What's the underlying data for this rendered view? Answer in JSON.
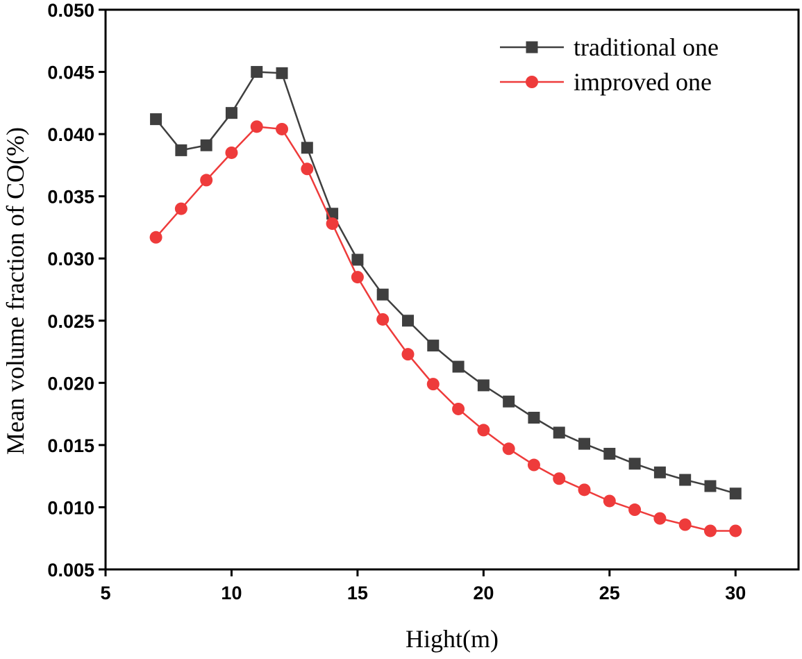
{
  "chart_data": {
    "type": "line",
    "title": "",
    "xlabel": "Hight(m)",
    "ylabel": "Mean volume fraction of CO(%)",
    "xlim": [
      5,
      32.5
    ],
    "ylim": [
      0.005,
      0.05
    ],
    "xticks": [
      5,
      10,
      15,
      20,
      25,
      30
    ],
    "xtick_labels": [
      "5",
      "10",
      "15",
      "20",
      "25",
      "30"
    ],
    "yticks": [
      0.005,
      0.01,
      0.015,
      0.02,
      0.025,
      0.03,
      0.035,
      0.04,
      0.045,
      0.05
    ],
    "ytick_labels": [
      "0.005",
      "0.010",
      "0.015",
      "0.020",
      "0.025",
      "0.030",
      "0.035",
      "0.040",
      "0.045",
      "0.050"
    ],
    "grid": false,
    "legend_position": "top-right",
    "x": [
      7,
      8,
      9,
      10,
      11,
      12,
      13,
      14,
      15,
      16,
      17,
      18,
      19,
      20,
      21,
      22,
      23,
      24,
      25,
      26,
      27,
      28,
      29,
      30
    ],
    "series": [
      {
        "name": "traditional one",
        "color": "#3f3f3f",
        "marker": "square",
        "values": [
          0.0412,
          0.0387,
          0.0391,
          0.0417,
          0.045,
          0.0449,
          0.0389,
          0.0336,
          0.0299,
          0.0271,
          0.025,
          0.023,
          0.0213,
          0.0198,
          0.0185,
          0.0172,
          0.016,
          0.0151,
          0.0143,
          0.0135,
          0.0128,
          0.0122,
          0.0117,
          0.0111
        ]
      },
      {
        "name": "improved one",
        "color": "#ee3b3b",
        "marker": "circle",
        "values": [
          0.0317,
          0.034,
          0.0363,
          0.0385,
          0.0406,
          0.0404,
          0.0372,
          0.0328,
          0.0285,
          0.0251,
          0.0223,
          0.0199,
          0.0179,
          0.0162,
          0.0147,
          0.0134,
          0.0123,
          0.0114,
          0.0105,
          0.0098,
          0.0091,
          0.0086,
          0.0081,
          0.0081
        ]
      }
    ]
  }
}
